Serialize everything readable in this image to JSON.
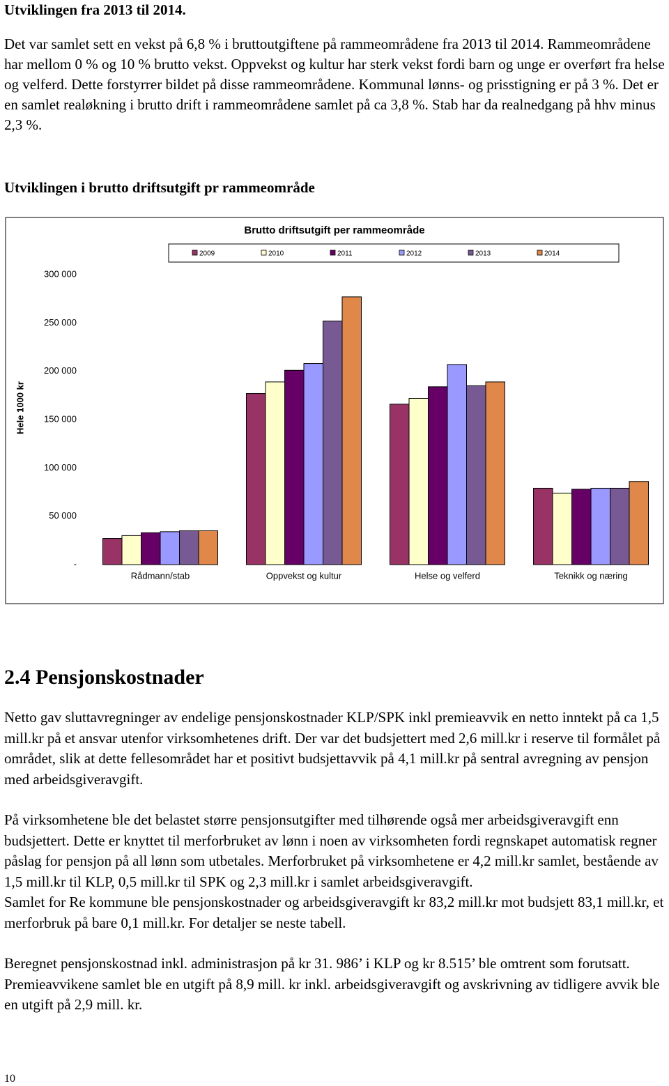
{
  "heading": "Utviklingen fra 2013 til 2014.",
  "intro": "Det var samlet sett en vekst på 6,8 % i bruttoutgiftene på rammeområdene fra 2013 til 2014. Rammeområdene har mellom 0 % og 10 % brutto vekst. Oppvekst og kultur har sterk vekst fordi barn og unge er overført fra helse og velferd. Dette forstyrrer bildet på disse rammeområdene. Kommunal lønns- og prisstigning er på 3 %. Det er en samlet realøkning i brutto drift i rammeområdene samlet på ca 3,8 %. Stab har da realnedgang på hhv minus 2,3 %.",
  "subheading": "Utviklingen i brutto driftsutgift pr rammeområde",
  "chart_data": {
    "type": "bar",
    "title": "Brutto driftsutgift per rammeområde",
    "y_label": "Hele 1000 kr",
    "categories": [
      "Rådmann/stab",
      "Oppvekst og kultur",
      "Helse og velferd",
      "Teknikk og næring"
    ],
    "series": [
      {
        "name": "2009",
        "color": "#993366",
        "values": [
          27000,
          177000,
          166000,
          79000
        ]
      },
      {
        "name": "2010",
        "color": "#ffffcc",
        "values": [
          30000,
          189000,
          172000,
          74000
        ]
      },
      {
        "name": "2011",
        "color": "#660066",
        "values": [
          33000,
          201000,
          184000,
          78000
        ]
      },
      {
        "name": "2012",
        "color": "#9999ff",
        "values": [
          34000,
          208000,
          207000,
          79000
        ]
      },
      {
        "name": "2013",
        "color": "#775a94",
        "values": [
          35000,
          252000,
          185000,
          79000
        ]
      },
      {
        "name": "2014",
        "color": "#e0874a",
        "values": [
          35000,
          277000,
          189000,
          86000
        ]
      }
    ],
    "ylim": [
      0,
      300000
    ],
    "yticks": [
      {
        "value": 0,
        "label": "-"
      },
      {
        "value": 50000,
        "label": "50 000"
      },
      {
        "value": 100000,
        "label": "100 000"
      },
      {
        "value": 150000,
        "label": "150 000"
      },
      {
        "value": 200000,
        "label": "200 000"
      },
      {
        "value": 250000,
        "label": "250 000"
      },
      {
        "value": 300000,
        "label": "300 000"
      }
    ],
    "legend": "top"
  },
  "section_heading": "2.4 Pensjonskostnader",
  "paragraphs": [
    "Netto gav sluttavregninger av endelige pensjonskostnader KLP/SPK inkl premieavvik en netto inntekt på ca 1,5 mill.kr på et ansvar utenfor virksomhetenes drift. Der var det budsjettert med 2,6 mill.kr i reserve til formålet på området, slik at dette fellesområdet har et positivt budsjettavvik på 4,1 mill.kr på sentral avregning av pensjon med arbeidsgiveravgift.",
    "På virksomhetene ble det belastet større pensjonsutgifter med tilhørende også mer arbeidsgiveravgift enn budsjettert. Dette er knyttet til merforbruket av lønn i noen av virksomheten fordi regnskapet automatisk regner påslag for pensjon på all lønn som utbetales. Merforbruket på virksomhetene er 4,2 mill.kr samlet, bestående av 1,5 mill.kr til KLP, 0,5 mill.kr til SPK og 2,3 mill.kr i samlet arbeidsgiveravgift.",
    "Samlet for Re kommune ble pensjonskostnader og arbeidsgiveravgift kr 83,2 mill.kr mot budsjett 83,1 mill.kr, et merforbruk på bare 0,1 mill.kr. For detaljer se neste tabell.",
    "Beregnet pensjonskostnad inkl. administrasjon på kr 31. 986’ i KLP og kr 8.515’ ble omtrent som forutsatt. Premieavvikene samlet ble en utgift på 8,9 mill. kr inkl. arbeidsgiveravgift og avskrivning av tidligere avvik ble en utgift på 2,9 mill. kr."
  ],
  "page_number": "10"
}
